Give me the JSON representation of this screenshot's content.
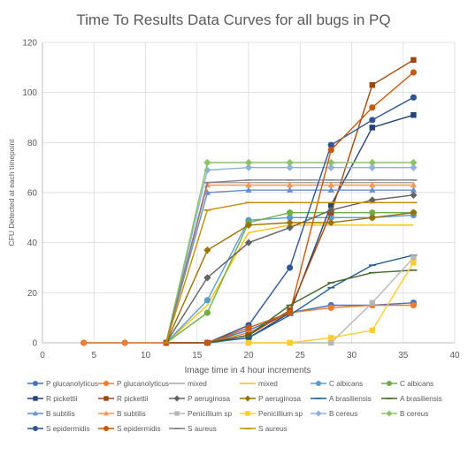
{
  "chart_data": {
    "type": "line",
    "title": "Time To Results Data Curves for all bugs in PQ",
    "xlabel": "Image time in 4 hour increments",
    "ylabel": "CFU Detected at each timepoint",
    "xlim": [
      0,
      40
    ],
    "ylim": [
      0,
      120
    ],
    "xticks": [
      0,
      5,
      10,
      15,
      20,
      25,
      30,
      35,
      40
    ],
    "yticks": [
      0,
      20,
      40,
      60,
      80,
      100,
      120
    ],
    "grid": true,
    "legend_position": "bottom",
    "series": [
      {
        "name": "P glucanolyticus",
        "color": "#4472C4",
        "marker": "circle",
        "points": [
          [
            4,
            0
          ],
          [
            8,
            0
          ],
          [
            12,
            0
          ],
          [
            16,
            0
          ],
          [
            20,
            5
          ],
          [
            24,
            12
          ],
          [
            28,
            15
          ],
          [
            32,
            15
          ],
          [
            36,
            16
          ]
        ]
      },
      {
        "name": "P glucanolyticus",
        "color": "#ED7D31",
        "marker": "circle",
        "points": [
          [
            4,
            0
          ],
          [
            8,
            0
          ],
          [
            12,
            0
          ],
          [
            16,
            0
          ],
          [
            20,
            4
          ],
          [
            24,
            12
          ],
          [
            28,
            14
          ],
          [
            32,
            15
          ],
          [
            36,
            15
          ]
        ]
      },
      {
        "name": "mixed",
        "color": "#A5A5A5",
        "marker": "none",
        "points": [
          [
            12,
            0
          ],
          [
            16,
            64
          ],
          [
            20,
            64
          ],
          [
            24,
            64
          ],
          [
            28,
            64
          ],
          [
            32,
            64
          ],
          [
            36,
            64
          ]
        ]
      },
      {
        "name": "mixed",
        "color": "#FFC000",
        "marker": "none",
        "points": [
          [
            12,
            0
          ],
          [
            16,
            15
          ],
          [
            20,
            44
          ],
          [
            24,
            47
          ],
          [
            28,
            47
          ],
          [
            32,
            47
          ],
          [
            36,
            47
          ]
        ]
      },
      {
        "name": "C albicans",
        "color": "#5B9BD5",
        "marker": "circle",
        "points": [
          [
            12,
            0
          ],
          [
            16,
            17
          ],
          [
            20,
            49
          ],
          [
            24,
            50
          ],
          [
            28,
            50
          ],
          [
            32,
            50
          ],
          [
            36,
            51
          ]
        ]
      },
      {
        "name": "C albicans",
        "color": "#70AD47",
        "marker": "circle",
        "points": [
          [
            12,
            0
          ],
          [
            16,
            12
          ],
          [
            20,
            48
          ],
          [
            24,
            52
          ],
          [
            28,
            52
          ],
          [
            32,
            52
          ],
          [
            36,
            52
          ]
        ]
      },
      {
        "name": "R pickettii",
        "color": "#264478",
        "marker": "square",
        "points": [
          [
            12,
            0
          ],
          [
            16,
            0
          ],
          [
            20,
            2
          ],
          [
            24,
            12
          ],
          [
            28,
            55
          ],
          [
            32,
            86
          ],
          [
            36,
            91
          ]
        ]
      },
      {
        "name": "R pickettii",
        "color": "#9E480E",
        "marker": "square",
        "points": [
          [
            12,
            0
          ],
          [
            16,
            0
          ],
          [
            20,
            3
          ],
          [
            24,
            13
          ],
          [
            28,
            52
          ],
          [
            32,
            103
          ],
          [
            36,
            113
          ]
        ]
      },
      {
        "name": "P aeruginosa",
        "color": "#636363",
        "marker": "diamond",
        "points": [
          [
            12,
            0
          ],
          [
            16,
            26
          ],
          [
            20,
            40
          ],
          [
            24,
            46
          ],
          [
            28,
            53
          ],
          [
            32,
            57
          ],
          [
            36,
            59
          ]
        ]
      },
      {
        "name": "P aeruginosa",
        "color": "#997300",
        "marker": "diamond",
        "points": [
          [
            12,
            0
          ],
          [
            16,
            37
          ],
          [
            20,
            47
          ],
          [
            24,
            48
          ],
          [
            28,
            48
          ],
          [
            32,
            50
          ],
          [
            36,
            52
          ]
        ]
      },
      {
        "name": "A brasiliensis",
        "color": "#255E91",
        "marker": "dash",
        "points": [
          [
            12,
            0
          ],
          [
            16,
            0
          ],
          [
            20,
            2
          ],
          [
            24,
            11
          ],
          [
            28,
            22
          ],
          [
            32,
            31
          ],
          [
            36,
            35
          ]
        ]
      },
      {
        "name": "A brasiliensis",
        "color": "#43682B",
        "marker": "dash",
        "points": [
          [
            12,
            0
          ],
          [
            16,
            0
          ],
          [
            20,
            3
          ],
          [
            24,
            15
          ],
          [
            28,
            24
          ],
          [
            32,
            28
          ],
          [
            36,
            29
          ]
        ]
      },
      {
        "name": "B subtilis",
        "color": "#698ED0",
        "marker": "triangle",
        "points": [
          [
            12,
            0
          ],
          [
            16,
            60
          ],
          [
            20,
            61
          ],
          [
            24,
            61
          ],
          [
            28,
            61
          ],
          [
            32,
            61
          ],
          [
            36,
            61
          ]
        ]
      },
      {
        "name": "B subtilis",
        "color": "#F1975A",
        "marker": "triangle",
        "points": [
          [
            12,
            0
          ],
          [
            16,
            63
          ],
          [
            20,
            63
          ],
          [
            24,
            63
          ],
          [
            28,
            63
          ],
          [
            32,
            63
          ],
          [
            36,
            63
          ]
        ]
      },
      {
        "name": "Penicillium sp",
        "color": "#B7B7B7",
        "marker": "square",
        "points": [
          [
            20,
            0
          ],
          [
            24,
            0
          ],
          [
            28,
            0
          ],
          [
            32,
            16
          ],
          [
            36,
            34
          ]
        ]
      },
      {
        "name": "Penicillium sp",
        "color": "#FFCD33",
        "marker": "square",
        "points": [
          [
            20,
            0
          ],
          [
            24,
            0
          ],
          [
            28,
            2
          ],
          [
            32,
            5
          ],
          [
            36,
            32
          ]
        ]
      },
      {
        "name": "B cereus",
        "color": "#8FB3E0",
        "marker": "diamond",
        "points": [
          [
            12,
            0
          ],
          [
            16,
            69
          ],
          [
            20,
            70
          ],
          [
            24,
            70
          ],
          [
            28,
            70
          ],
          [
            32,
            70
          ],
          [
            36,
            70
          ]
        ]
      },
      {
        "name": "B cereus",
        "color": "#8CC168",
        "marker": "diamond",
        "points": [
          [
            12,
            0
          ],
          [
            16,
            72
          ],
          [
            20,
            72
          ],
          [
            24,
            72
          ],
          [
            28,
            72
          ],
          [
            32,
            72
          ],
          [
            36,
            72
          ]
        ]
      },
      {
        "name": "S epidermidis",
        "color": "#2F5597",
        "marker": "circle",
        "points": [
          [
            12,
            0
          ],
          [
            16,
            0
          ],
          [
            20,
            7
          ],
          [
            24,
            30
          ],
          [
            28,
            79
          ],
          [
            32,
            89
          ],
          [
            36,
            98
          ]
        ]
      },
      {
        "name": "S epidermidis",
        "color": "#C55A11",
        "marker": "circle",
        "points": [
          [
            12,
            0
          ],
          [
            16,
            0
          ],
          [
            20,
            6
          ],
          [
            24,
            12
          ],
          [
            28,
            77
          ],
          [
            32,
            94
          ],
          [
            36,
            108
          ]
        ]
      },
      {
        "name": "S aureus",
        "color": "#7F7F7F",
        "marker": "dash",
        "points": [
          [
            12,
            0
          ],
          [
            16,
            64
          ],
          [
            20,
            65
          ],
          [
            24,
            65
          ],
          [
            28,
            65
          ],
          [
            32,
            65
          ],
          [
            36,
            65
          ]
        ]
      },
      {
        "name": "S aureus",
        "color": "#BF9000",
        "marker": "dash",
        "points": [
          [
            12,
            0
          ],
          [
            16,
            53
          ],
          [
            20,
            56
          ],
          [
            24,
            56
          ],
          [
            28,
            56
          ],
          [
            32,
            56
          ],
          [
            36,
            56
          ]
        ]
      }
    ]
  }
}
